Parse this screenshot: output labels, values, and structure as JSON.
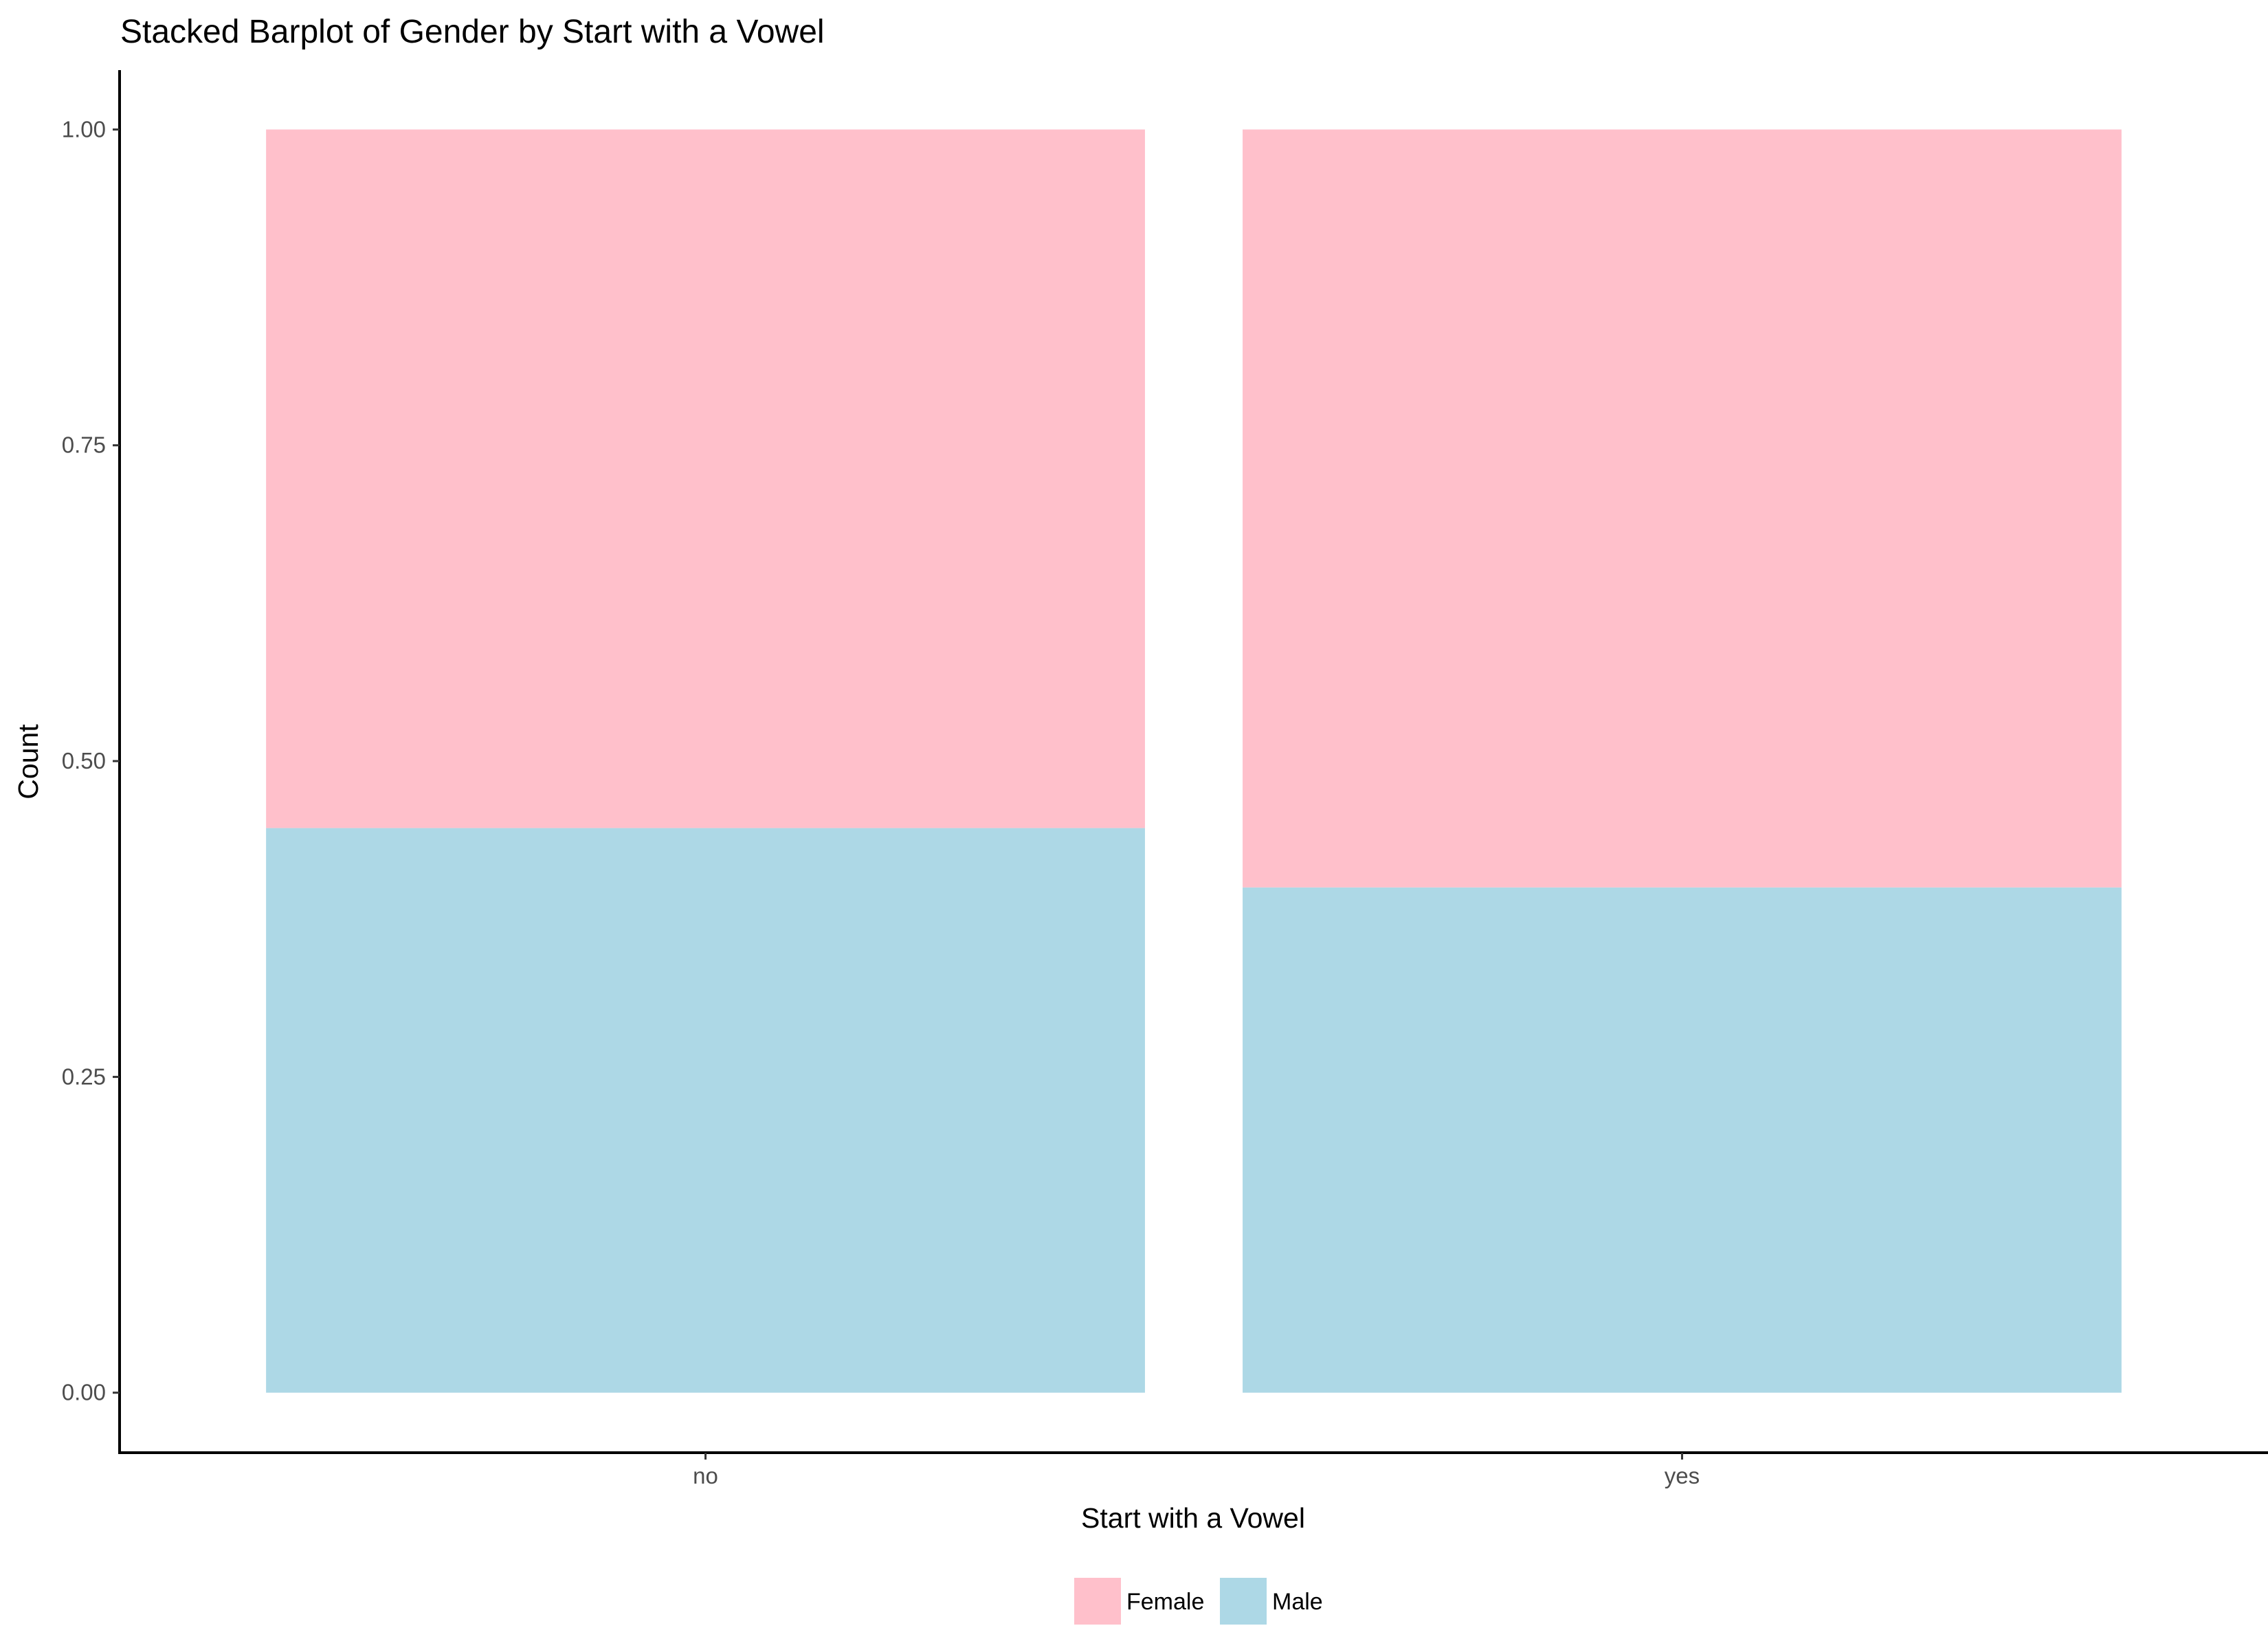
{
  "chart_data": {
    "type": "bar",
    "stacked": true,
    "title": "Stacked Barplot of Gender by Start with a Vowel",
    "xlabel": "Start with a Vowel",
    "ylabel": "Count",
    "categories": [
      "no",
      "yes"
    ],
    "series": [
      {
        "name": "Male",
        "values": [
          0.447,
          0.4
        ],
        "color": "#add8e6"
      },
      {
        "name": "Female",
        "values": [
          0.553,
          0.6
        ],
        "color": "#ffc0cb"
      }
    ],
    "ylim": [
      -0.0475,
      1.047
    ],
    "yticks": [
      0.0,
      0.25,
      0.5,
      0.75,
      1.0
    ],
    "ytick_labels": [
      "0.00",
      "0.25",
      "0.50",
      "0.75",
      "1.00"
    ],
    "legend": {
      "position": "bottom",
      "entries": [
        {
          "label": "Female",
          "color": "#ffc0cb"
        },
        {
          "label": "Male",
          "color": "#add8e6"
        }
      ]
    },
    "grid": false
  }
}
